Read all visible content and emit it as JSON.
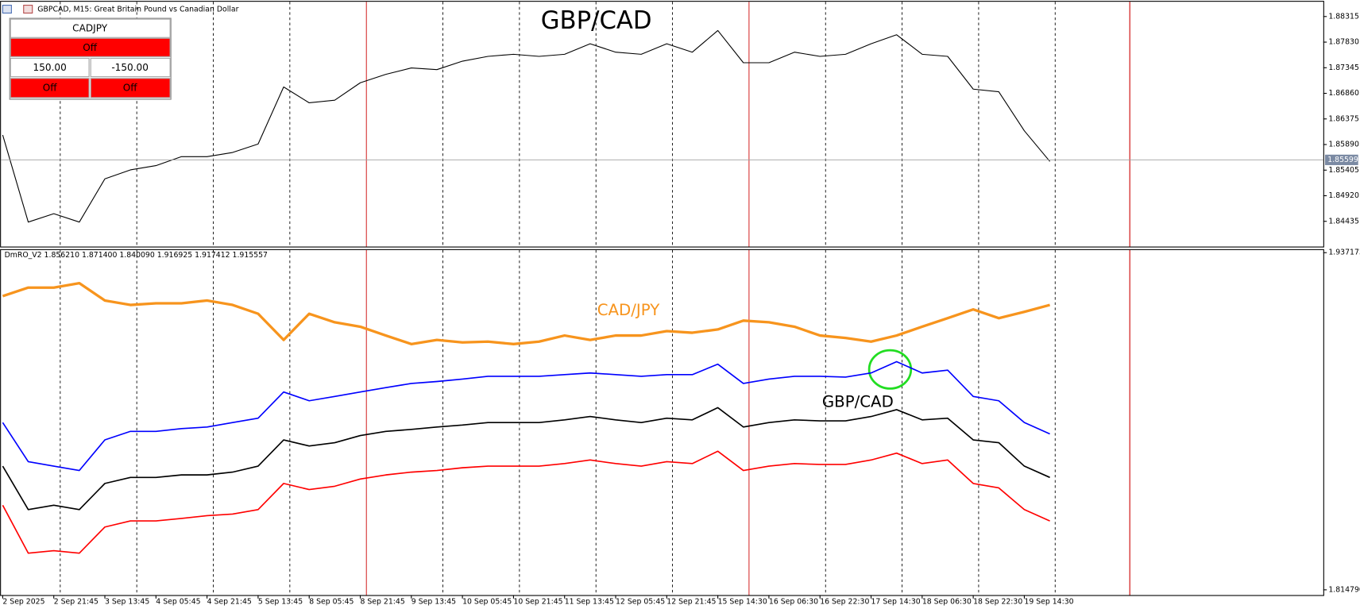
{
  "trade_panel": {
    "symbol": "CADJPY",
    "status": "Off",
    "lot_buy": "150.00",
    "lot_sell": "-150.00",
    "buy": "Off",
    "sell": "Off"
  },
  "chart_data": [
    {
      "type": "line",
      "title": "GBPCAD, M15:  Great Britain Pound vs Canadian Dollar",
      "annotations": [
        {
          "text": "GBP/CAD",
          "color": "#000000"
        }
      ],
      "color": "#000000",
      "values": [
        1.8607,
        1.8442,
        1.8458,
        1.8442,
        1.8524,
        1.8541,
        1.8549,
        1.8566,
        1.8566,
        1.8574,
        1.859,
        1.8698,
        1.8668,
        1.8673,
        1.8706,
        1.8722,
        1.8734,
        1.8731,
        1.8747,
        1.8756,
        1.876,
        1.8756,
        1.876,
        1.878,
        1.8764,
        1.876,
        1.878,
        1.8764,
        1.8805,
        1.8744,
        1.8744,
        1.8764,
        1.8756,
        1.876,
        1.878,
        1.8797,
        1.876,
        1.8756,
        1.8694,
        1.8689,
        1.8615,
        1.8557
      ],
      "current_price": 1.85599,
      "ylim": [
        1.83957,
        1.88628
      ],
      "yticks": [
        1.88315,
        {
          "value": 1.8783,
          "label": "1.87830"
        },
        1.87345,
        {
          "value": 1.8686,
          "label": "1.86860"
        },
        1.86375,
        {
          "value": 1.8589,
          "label": "1.85890"
        },
        1.85405,
        {
          "value": 1.8492,
          "label": "1.84920"
        },
        1.84435
      ]
    },
    {
      "type": "line",
      "title": "DmRO_V2 1.856210 1.871400 1.840090 1.916925 1.917412 1.915557",
      "annotations": [
        {
          "text": "CAD/JPY",
          "color": "#f7941d"
        },
        {
          "text": "GBP/CAD",
          "color": "#000000"
        }
      ],
      "categories": [
        "2 Sep 2025",
        null,
        "2 Sep 21:45",
        null,
        "3 Sep 13:45",
        null,
        "4 Sep 05:45",
        null,
        "4 Sep 21:45",
        null,
        "5 Sep 13:45",
        null,
        "8 Sep 05:45",
        null,
        "8 Sep 21:45",
        null,
        "9 Sep 13:45",
        null,
        "10 Sep 05:45",
        null,
        "10 Sep 21:45",
        null,
        "11 Sep 13:45",
        null,
        "12 Sep 05:45",
        null,
        "12 Sep 21:45",
        null,
        "15 Sep 14:30",
        null,
        "16 Sep 06:30",
        null,
        "16 Sep 22:30",
        null,
        "17 Sep 14:30",
        null,
        "18 Sep 06:30",
        null,
        "18 Sep 22:30",
        null,
        "19 Sep 14:30",
        null
      ],
      "series": [
        {
          "color": "#f7941d",
          "values": [
            1.9214,
            1.9245,
            1.9245,
            1.9261,
            1.9198,
            1.9182,
            1.9188,
            1.9188,
            1.9198,
            1.9182,
            1.915,
            1.9055,
            1.915,
            1.9119,
            1.9103,
            1.9071,
            1.904,
            1.9055,
            1.9046,
            1.9049,
            1.904,
            1.9049,
            1.9071,
            1.9055,
            1.9071,
            1.9071,
            1.9087,
            1.9081,
            1.9093,
            1.9125,
            1.9119,
            1.9103,
            1.9071,
            1.9062,
            1.9049,
            1.9071,
            1.9103,
            1.9134,
            1.9166,
            1.9134,
            1.9157,
            1.9182
          ]
        },
        {
          "color": "#0000ff",
          "values": [
            1.8755,
            1.8613,
            1.8597,
            1.8581,
            1.8692,
            1.8723,
            1.8723,
            1.8733,
            1.8739,
            1.8755,
            1.8771,
            1.8866,
            1.8834,
            1.885,
            1.8866,
            1.8882,
            1.8897,
            1.8904,
            1.8913,
            1.8923,
            1.8923,
            1.8923,
            1.8929,
            1.8935,
            1.8929,
            1.8923,
            1.8929,
            1.8929,
            1.8967,
            1.8897,
            1.8913,
            1.8923,
            1.8923,
            1.892,
            1.8935,
            1.8976,
            1.8935,
            1.8945,
            1.885,
            1.8834,
            1.8755,
            1.8714
          ]
        },
        {
          "color": "#000000",
          "values": [
            1.8597,
            1.8439,
            1.8455,
            1.8439,
            1.8534,
            1.8556,
            1.8556,
            1.8565,
            1.8565,
            1.8575,
            1.8597,
            1.8692,
            1.867,
            1.8682,
            1.8708,
            1.8723,
            1.873,
            1.8739,
            1.8746,
            1.8755,
            1.8755,
            1.8755,
            1.8765,
            1.8777,
            1.8765,
            1.8755,
            1.8771,
            1.8765,
            1.8809,
            1.8739,
            1.8755,
            1.8765,
            1.8761,
            1.8761,
            1.8777,
            1.8802,
            1.8765,
            1.8771,
            1.8692,
            1.8682,
            1.8597,
            1.8556
          ]
        },
        {
          "color": "#ff0000",
          "values": [
            1.8455,
            1.8281,
            1.829,
            1.8281,
            1.8376,
            1.8398,
            1.8398,
            1.8407,
            1.8417,
            1.8423,
            1.8439,
            1.8534,
            1.8512,
            1.8524,
            1.855,
            1.8565,
            1.8575,
            1.8581,
            1.8591,
            1.8597,
            1.8597,
            1.8597,
            1.8606,
            1.8619,
            1.8606,
            1.8597,
            1.8613,
            1.8606,
            1.8651,
            1.8581,
            1.8597,
            1.8606,
            1.8603,
            1.8603,
            1.8619,
            1.8644,
            1.8606,
            1.8619,
            1.8534,
            1.8518,
            1.8439,
            1.8398
          ]
        }
      ],
      "ylim": [
        1.81479,
        1.937173
      ],
      "yticks": [
        1.937173,
        {
          "value": 1.81479,
          "label": "1.814790"
        }
      ]
    }
  ]
}
